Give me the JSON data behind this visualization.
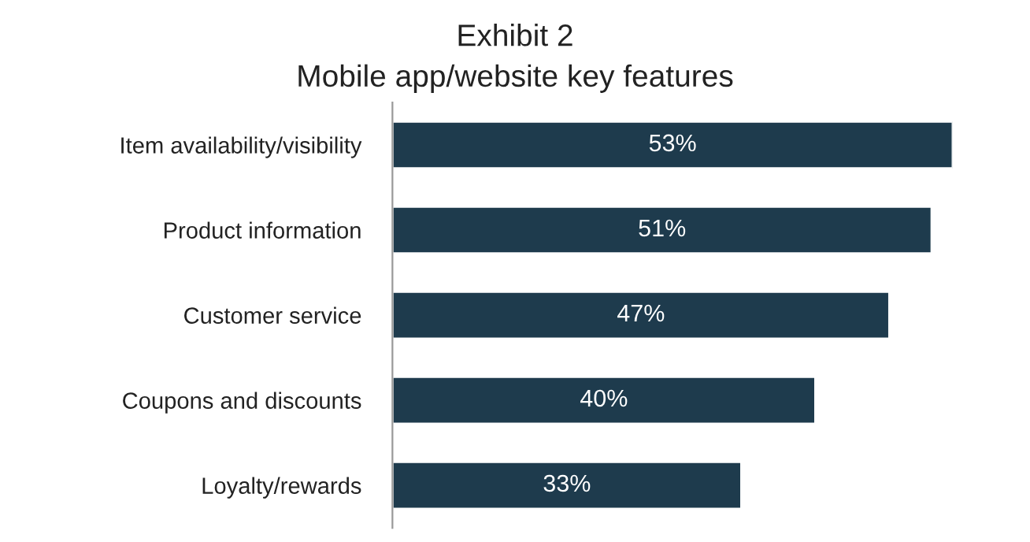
{
  "chart_data": {
    "type": "bar",
    "orientation": "horizontal",
    "title": "Exhibit 2",
    "subtitle": "Mobile app/website key features",
    "categories": [
      "Item availability/visibility",
      "Product information",
      "Customer service",
      "Coupons and discounts",
      "Loyalty/rewards"
    ],
    "values": [
      53,
      51,
      47,
      40,
      33
    ],
    "value_labels": [
      "53%",
      "51%",
      "47%",
      "40%",
      "33%"
    ],
    "color": "#1e3b4d"
  }
}
